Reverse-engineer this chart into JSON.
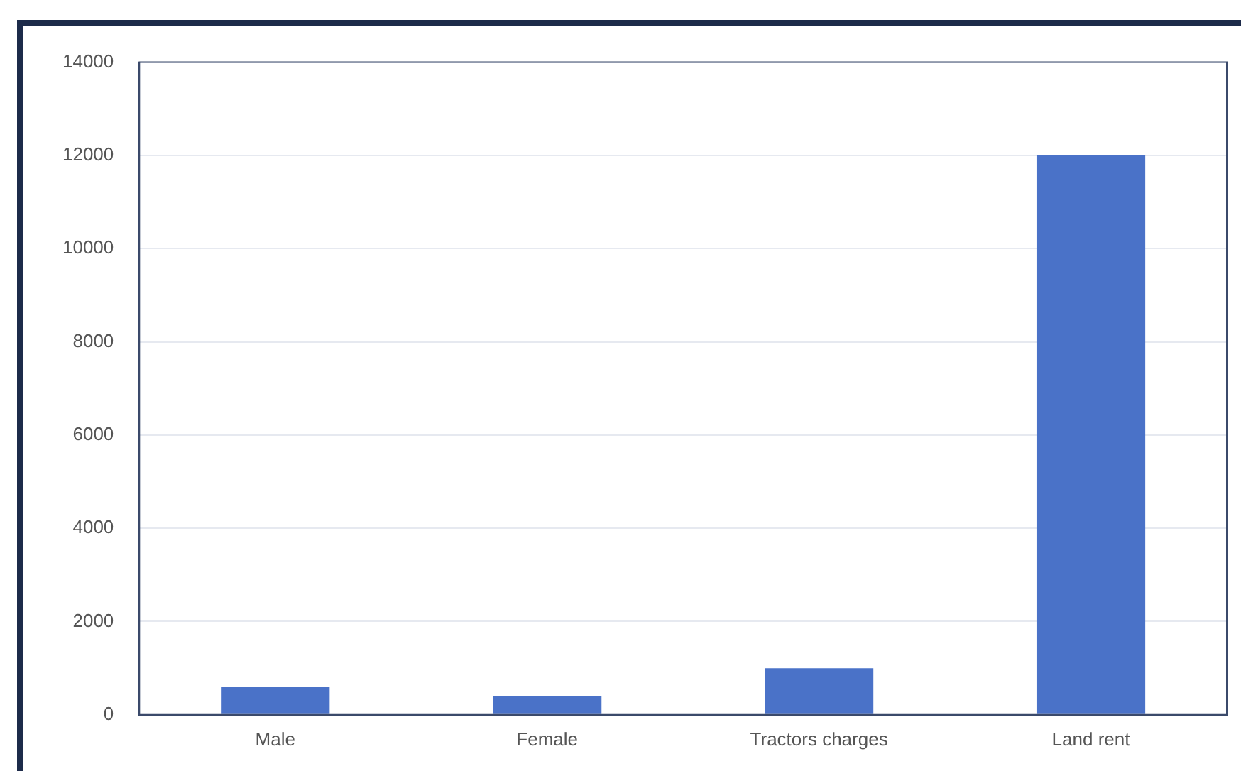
{
  "chart_data": {
    "type": "bar",
    "categories": [
      "Male",
      "Female",
      "Tractors charges",
      "Land rent"
    ],
    "values": [
      600,
      400,
      1000,
      12000
    ],
    "color": "#4a72c8",
    "ylim": [
      0,
      14000
    ],
    "yticks": [
      0,
      2000,
      4000,
      6000,
      8000,
      10000,
      12000,
      14000
    ],
    "grid": "y"
  }
}
